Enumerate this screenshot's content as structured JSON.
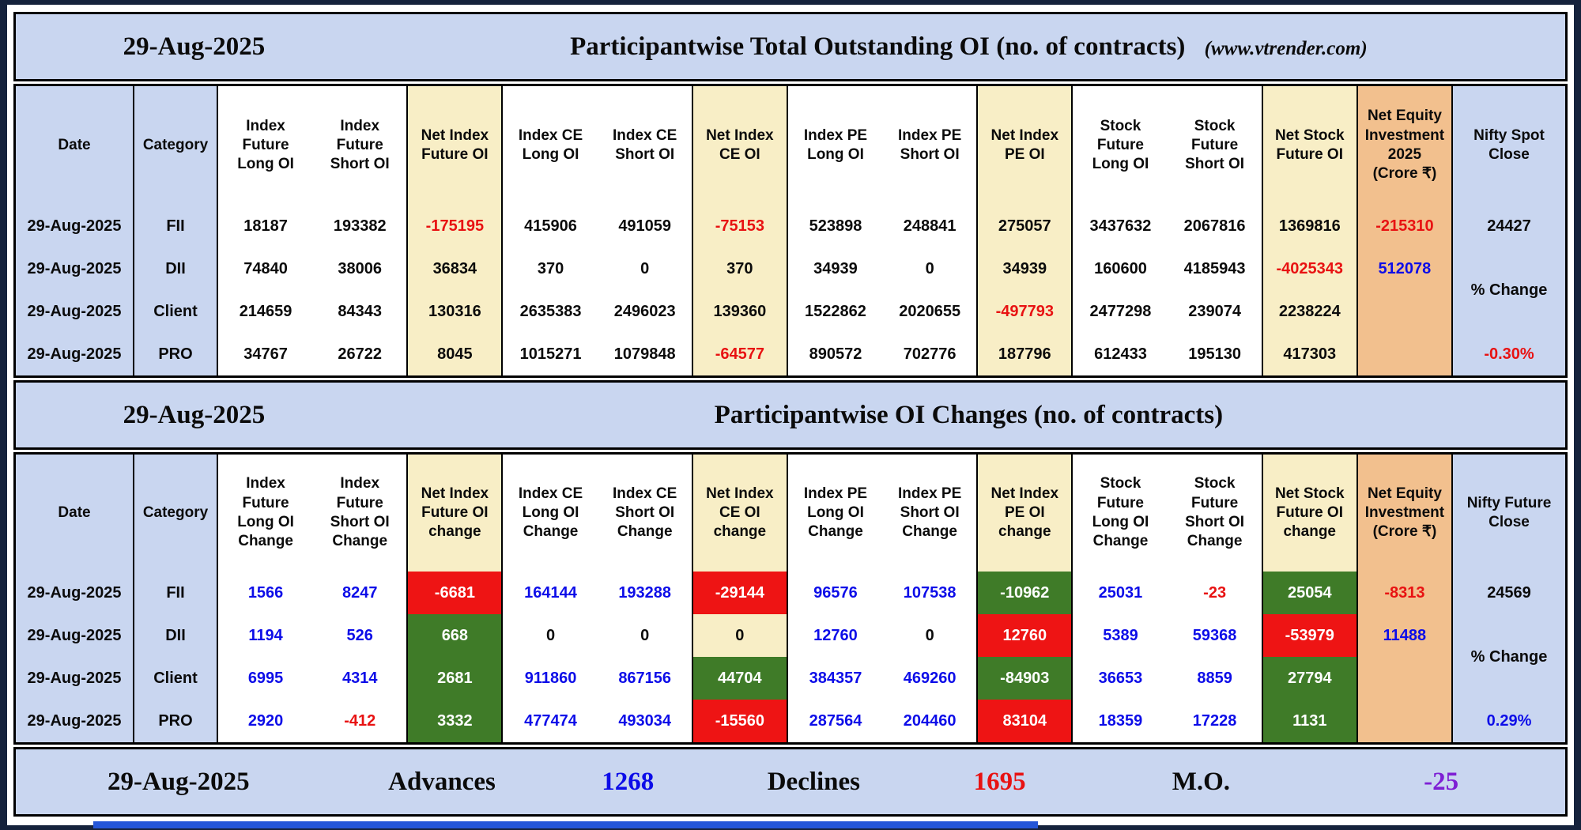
{
  "band1": {
    "date": "29-Aug-2025",
    "title": "Participantwise Total Outstanding OI (no. of contracts)",
    "site": "(www.vtrender.com)"
  },
  "band2": {
    "date": "29-Aug-2025",
    "title": "Participantwise OI Changes (no. of contracts)"
  },
  "colors": {
    "band_blue": "#c9d6f0",
    "net_tan": "#f8eec6",
    "equity_orange": "#f2c08e",
    "bull_green": "#3f7b28",
    "bear_red": "#ee1414",
    "text_blue": "#0d0de8",
    "text_red": "#e81212",
    "text_purple": "#7e1fd4"
  },
  "table1": {
    "cols": [
      {
        "id": "date",
        "bg": "blue",
        "header": "Date",
        "cells": [
          {
            "t": "29-Aug-2025",
            "c": "k"
          },
          {
            "t": "29-Aug-2025",
            "c": "k"
          },
          {
            "t": "29-Aug-2025",
            "c": "k"
          },
          {
            "t": "29-Aug-2025",
            "c": "k"
          }
        ]
      },
      {
        "id": "category",
        "bg": "blue",
        "header": "Category",
        "cells": [
          {
            "t": "FII",
            "c": "k"
          },
          {
            "t": "DII",
            "c": "k"
          },
          {
            "t": "Client",
            "c": "k"
          },
          {
            "t": "PRO",
            "c": "k"
          }
        ]
      },
      {
        "id": "index-future-long-oi",
        "bg": "white",
        "nr": true,
        "header": "Index\nFuture\nLong OI",
        "cells": [
          {
            "t": "18187",
            "c": "k"
          },
          {
            "t": "74840",
            "c": "k"
          },
          {
            "t": "214659",
            "c": "k"
          },
          {
            "t": "34767",
            "c": "k"
          }
        ]
      },
      {
        "id": "index-future-short-oi",
        "bg": "white",
        "header": "Index\nFuture\nShort OI",
        "cells": [
          {
            "t": "193382",
            "c": "k"
          },
          {
            "t": "38006",
            "c": "k"
          },
          {
            "t": "84343",
            "c": "k"
          },
          {
            "t": "26722",
            "c": "k"
          }
        ]
      },
      {
        "id": "net-index-future-oi",
        "bg": "tan",
        "header": "Net Index\nFuture OI",
        "cells": [
          {
            "t": "-175195",
            "c": "r"
          },
          {
            "t": "36834",
            "c": "k"
          },
          {
            "t": "130316",
            "c": "k"
          },
          {
            "t": "8045",
            "c": "k"
          }
        ]
      },
      {
        "id": "index-ce-long-oi",
        "bg": "white",
        "nr": true,
        "header": "Index CE\nLong OI",
        "cells": [
          {
            "t": "415906",
            "c": "k"
          },
          {
            "t": "370",
            "c": "k"
          },
          {
            "t": "2635383",
            "c": "k"
          },
          {
            "t": "1015271",
            "c": "k"
          }
        ]
      },
      {
        "id": "index-ce-short-oi",
        "bg": "white",
        "header": "Index CE\nShort OI",
        "cells": [
          {
            "t": "491059",
            "c": "k"
          },
          {
            "t": "0",
            "c": "k"
          },
          {
            "t": "2496023",
            "c": "k"
          },
          {
            "t": "1079848",
            "c": "k"
          }
        ]
      },
      {
        "id": "net-index-ce-oi",
        "bg": "tan",
        "header": "Net Index\nCE OI",
        "cells": [
          {
            "t": "-75153",
            "c": "r"
          },
          {
            "t": "370",
            "c": "k"
          },
          {
            "t": "139360",
            "c": "k"
          },
          {
            "t": "-64577",
            "c": "r"
          }
        ]
      },
      {
        "id": "index-pe-long-oi",
        "bg": "white",
        "nr": true,
        "header": "Index PE\nLong OI",
        "cells": [
          {
            "t": "523898",
            "c": "k"
          },
          {
            "t": "34939",
            "c": "k"
          },
          {
            "t": "1522862",
            "c": "k"
          },
          {
            "t": "890572",
            "c": "k"
          }
        ]
      },
      {
        "id": "index-pe-short-oi",
        "bg": "white",
        "header": "Index PE\nShort OI",
        "cells": [
          {
            "t": "248841",
            "c": "k"
          },
          {
            "t": "0",
            "c": "k"
          },
          {
            "t": "2020655",
            "c": "k"
          },
          {
            "t": "702776",
            "c": "k"
          }
        ]
      },
      {
        "id": "net-index-pe-oi",
        "bg": "tan",
        "header": "Net Index\nPE OI",
        "cells": [
          {
            "t": "275057",
            "c": "k"
          },
          {
            "t": "34939",
            "c": "k"
          },
          {
            "t": "-497793",
            "c": "r"
          },
          {
            "t": "187796",
            "c": "k"
          }
        ]
      },
      {
        "id": "stock-future-long-oi",
        "bg": "white",
        "nr": true,
        "header": "Stock\nFuture\nLong OI",
        "cells": [
          {
            "t": "3437632",
            "c": "k"
          },
          {
            "t": "160600",
            "c": "k"
          },
          {
            "t": "2477298",
            "c": "k"
          },
          {
            "t": "612433",
            "c": "k"
          }
        ]
      },
      {
        "id": "stock-future-short-oi",
        "bg": "white",
        "header": "Stock\nFuture\nShort OI",
        "cells": [
          {
            "t": "2067816",
            "c": "k"
          },
          {
            "t": "4185943",
            "c": "k"
          },
          {
            "t": "239074",
            "c": "k"
          },
          {
            "t": "195130",
            "c": "k"
          }
        ]
      },
      {
        "id": "net-stock-future-oi",
        "bg": "tan",
        "header": "Net Stock\nFuture OI",
        "cells": [
          {
            "t": "1369816",
            "c": "k"
          },
          {
            "t": "-4025343",
            "c": "r"
          },
          {
            "t": "2238224",
            "c": "k"
          },
          {
            "t": "417303",
            "c": "k"
          }
        ]
      },
      {
        "id": "net-equity-investment-2025",
        "bg": "orange",
        "header": "Net Equity\nInvestment\n2025\n(Crore ₹)",
        "cells": [
          {
            "t": "-215310",
            "c": "r"
          },
          {
            "t": "512078",
            "c": "b"
          },
          {
            "t": "",
            "c": "k"
          },
          {
            "t": "",
            "c": "k"
          }
        ]
      },
      {
        "id": "nifty-spot-close",
        "bg": "blue",
        "special": true,
        "header": "Nifty Spot\nClose",
        "close": {
          "t": "24427",
          "c": "k"
        },
        "mid": {
          "t": "% Change",
          "c": "k"
        },
        "pct": {
          "t": "-0.30%",
          "c": "r"
        }
      }
    ]
  },
  "table2": {
    "cols": [
      {
        "id": "date",
        "bg": "blue",
        "header": "Date",
        "cells": [
          {
            "t": "29-Aug-2025",
            "c": "k"
          },
          {
            "t": "29-Aug-2025",
            "c": "k"
          },
          {
            "t": "29-Aug-2025",
            "c": "k"
          },
          {
            "t": "29-Aug-2025",
            "c": "k"
          }
        ]
      },
      {
        "id": "category",
        "bg": "blue",
        "header": "Category",
        "cells": [
          {
            "t": "FII",
            "c": "k"
          },
          {
            "t": "DII",
            "c": "k"
          },
          {
            "t": "Client",
            "c": "k"
          },
          {
            "t": "PRO",
            "c": "k"
          }
        ]
      },
      {
        "id": "index-future-long-oi-change",
        "bg": "white",
        "nr": true,
        "header": "Index\nFuture\nLong OI\nChange",
        "cells": [
          {
            "t": "1566",
            "c": "b"
          },
          {
            "t": "1194",
            "c": "b"
          },
          {
            "t": "6995",
            "c": "b"
          },
          {
            "t": "2920",
            "c": "b"
          }
        ]
      },
      {
        "id": "index-future-short-oi-change",
        "bg": "white",
        "header": "Index\nFuture\nShort OI\nChange",
        "cells": [
          {
            "t": "8247",
            "c": "b"
          },
          {
            "t": "526",
            "c": "b"
          },
          {
            "t": "4314",
            "c": "b"
          },
          {
            "t": "-412",
            "c": "r"
          }
        ]
      },
      {
        "id": "net-index-future-oi-change",
        "bg": "tan",
        "header": "Net Index\nFuture OI\nchange",
        "cells": [
          {
            "t": "-6681",
            "c": "w",
            "bg": "red"
          },
          {
            "t": "668",
            "c": "w",
            "bg": "green"
          },
          {
            "t": "2681",
            "c": "w",
            "bg": "green"
          },
          {
            "t": "3332",
            "c": "w",
            "bg": "green"
          }
        ]
      },
      {
        "id": "index-ce-long-oi-change",
        "bg": "white",
        "nr": true,
        "header": "Index CE\nLong OI\nChange",
        "cells": [
          {
            "t": "164144",
            "c": "b"
          },
          {
            "t": "0",
            "c": "k"
          },
          {
            "t": "911860",
            "c": "b"
          },
          {
            "t": "477474",
            "c": "b"
          }
        ]
      },
      {
        "id": "index-ce-short-oi-change",
        "bg": "white",
        "header": "Index CE\nShort OI\nChange",
        "cells": [
          {
            "t": "193288",
            "c": "b"
          },
          {
            "t": "0",
            "c": "k"
          },
          {
            "t": "867156",
            "c": "b"
          },
          {
            "t": "493034",
            "c": "b"
          }
        ]
      },
      {
        "id": "net-index-ce-oi-change",
        "bg": "tan",
        "header": "Net Index\nCE OI\nchange",
        "cells": [
          {
            "t": "-29144",
            "c": "w",
            "bg": "red"
          },
          {
            "t": "0",
            "c": "k"
          },
          {
            "t": "44704",
            "c": "w",
            "bg": "green"
          },
          {
            "t": "-15560",
            "c": "w",
            "bg": "red"
          }
        ]
      },
      {
        "id": "index-pe-long-oi-change",
        "bg": "white",
        "nr": true,
        "header": "Index PE\nLong OI\nChange",
        "cells": [
          {
            "t": "96576",
            "c": "b"
          },
          {
            "t": "12760",
            "c": "b"
          },
          {
            "t": "384357",
            "c": "b"
          },
          {
            "t": "287564",
            "c": "b"
          }
        ]
      },
      {
        "id": "index-pe-short-oi-change",
        "bg": "white",
        "header": "Index PE\nShort OI\nChange",
        "cells": [
          {
            "t": "107538",
            "c": "b"
          },
          {
            "t": "0",
            "c": "k"
          },
          {
            "t": "469260",
            "c": "b"
          },
          {
            "t": "204460",
            "c": "b"
          }
        ]
      },
      {
        "id": "net-index-pe-oi-change",
        "bg": "tan",
        "header": "Net Index\nPE OI\nchange",
        "cells": [
          {
            "t": "-10962",
            "c": "w",
            "bg": "green"
          },
          {
            "t": "12760",
            "c": "w",
            "bg": "red"
          },
          {
            "t": "-84903",
            "c": "w",
            "bg": "green"
          },
          {
            "t": "83104",
            "c": "w",
            "bg": "red"
          }
        ]
      },
      {
        "id": "stock-future-long-oi-change",
        "bg": "white",
        "nr": true,
        "header": "Stock\nFuture\nLong OI\nChange",
        "cells": [
          {
            "t": "25031",
            "c": "b"
          },
          {
            "t": "5389",
            "c": "b"
          },
          {
            "t": "36653",
            "c": "b"
          },
          {
            "t": "18359",
            "c": "b"
          }
        ]
      },
      {
        "id": "stock-future-short-oi-change",
        "bg": "white",
        "header": "Stock\nFuture\nShort OI\nChange",
        "cells": [
          {
            "t": "-23",
            "c": "r"
          },
          {
            "t": "59368",
            "c": "b"
          },
          {
            "t": "8859",
            "c": "b"
          },
          {
            "t": "17228",
            "c": "b"
          }
        ]
      },
      {
        "id": "net-stock-future-oi-change",
        "bg": "tan",
        "header": "Net Stock\nFuture OI\nchange",
        "cells": [
          {
            "t": "25054",
            "c": "w",
            "bg": "green"
          },
          {
            "t": "-53979",
            "c": "w",
            "bg": "red"
          },
          {
            "t": "27794",
            "c": "w",
            "bg": "green"
          },
          {
            "t": "1131",
            "c": "w",
            "bg": "green"
          }
        ]
      },
      {
        "id": "net-equity-investment",
        "bg": "orange",
        "header": "Net Equity\nInvestment\n(Crore ₹)",
        "cells": [
          {
            "t": "-8313",
            "c": "r"
          },
          {
            "t": "11488",
            "c": "b"
          },
          {
            "t": "",
            "c": "k"
          },
          {
            "t": "",
            "c": "k"
          }
        ]
      },
      {
        "id": "nifty-future-close",
        "bg": "blue",
        "special": true,
        "header": "Nifty Future\nClose",
        "close": {
          "t": "24569",
          "c": "k"
        },
        "mid": {
          "t": "% Change",
          "c": "k"
        },
        "pct": {
          "t": "0.29%",
          "c": "b"
        }
      }
    ]
  },
  "bottom": {
    "date": "29-Aug-2025",
    "advances_label": "Advances",
    "advances_value": "1268",
    "declines_label": "Declines",
    "declines_value": "1695",
    "mo_label": "M.O.",
    "mo_value": "-25"
  }
}
